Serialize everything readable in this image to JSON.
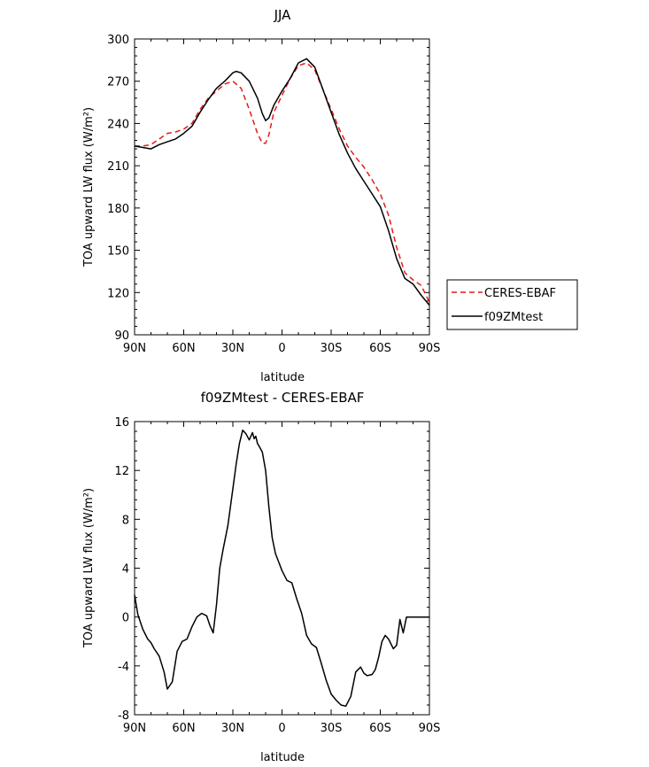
{
  "chart_data": [
    {
      "type": "line",
      "title": "JJA",
      "xlabel": "latitude",
      "ylabel": "TOA upward LW flux (W/m²)",
      "xlim": [
        90,
        -90
      ],
      "ylim": [
        90,
        300
      ],
      "xticks": [
        "90N",
        "60N",
        "30N",
        "0",
        "30S",
        "60S",
        "90S"
      ],
      "yticks": [
        "90",
        "120",
        "150",
        "180",
        "210",
        "240",
        "270",
        "300"
      ],
      "legend": "right",
      "series": [
        {
          "name": "CERES-EBAF",
          "color": "#e41a1c",
          "dash": "dashed",
          "x": [
            90,
            85,
            80,
            75,
            70,
            65,
            60,
            55,
            50,
            45,
            40,
            35,
            30,
            25,
            20,
            15,
            12,
            10,
            8,
            5,
            0,
            -5,
            -10,
            -15,
            -20,
            -25,
            -30,
            -35,
            -40,
            -45,
            -50,
            -55,
            -60,
            -65,
            -70,
            -75,
            -80,
            -85,
            -90
          ],
          "y": [
            224,
            224,
            225,
            229,
            233,
            234,
            236,
            240,
            250,
            258,
            263,
            268,
            270,
            265,
            250,
            233,
            226,
            226,
            232,
            248,
            260,
            272,
            281,
            283,
            278,
            264,
            250,
            236,
            224,
            216,
            209,
            200,
            190,
            175,
            152,
            134,
            129,
            125,
            113
          ]
        },
        {
          "name": "f09ZMtest",
          "color": "#000000",
          "dash": "solid",
          "x": [
            90,
            85,
            80,
            75,
            70,
            65,
            60,
            55,
            50,
            45,
            40,
            35,
            30,
            28,
            25,
            20,
            15,
            12,
            10,
            8,
            5,
            0,
            -5,
            -10,
            -15,
            -20,
            -25,
            -30,
            -35,
            -40,
            -45,
            -50,
            -55,
            -60,
            -65,
            -70,
            -75,
            -80,
            -85,
            -90
          ],
          "y": [
            224,
            223,
            222,
            225,
            227,
            229,
            233,
            238,
            248,
            257,
            265,
            270,
            276,
            277,
            276,
            270,
            258,
            247,
            242,
            244,
            253,
            263,
            272,
            283,
            286,
            280,
            264,
            248,
            232,
            219,
            208,
            199,
            190,
            181,
            164,
            144,
            130,
            126,
            118,
            111
          ]
        }
      ]
    },
    {
      "type": "line",
      "title": "f09ZMtest - CERES-EBAF",
      "xlabel": "latitude",
      "ylabel": "TOA upward LW flux (W/m²)",
      "xlim": [
        90,
        -90
      ],
      "ylim": [
        -8,
        16
      ],
      "xticks": [
        "90N",
        "60N",
        "30N",
        "0",
        "30S",
        "60S",
        "90S"
      ],
      "yticks": [
        "-8",
        "-4",
        "0",
        "4",
        "8",
        "12",
        "16"
      ],
      "series": [
        {
          "color": "#000000",
          "x": [
            90,
            88,
            85,
            82,
            80,
            78,
            75,
            72,
            70,
            67,
            64,
            61,
            58,
            55,
            52,
            49,
            46,
            44,
            42,
            40,
            38,
            36,
            35,
            33,
            30,
            28,
            26,
            24,
            22,
            20,
            18,
            17,
            16,
            15,
            14,
            12,
            10,
            8,
            6,
            4,
            2,
            0,
            -3,
            -6,
            -9,
            -12,
            -15,
            -18,
            -21,
            -24,
            -27,
            -30,
            -33,
            -36,
            -39,
            -42,
            -45,
            -48,
            -50,
            -52,
            -55,
            -57,
            -59,
            -61,
            -63,
            -65,
            -68,
            -70,
            -72,
            -74,
            -76,
            -78,
            -80,
            -82,
            -84,
            -86,
            -88,
            -89,
            -90
          ],
          "y": [
            1.8,
            0.2,
            -1.0,
            -1.8,
            -2.1,
            -2.6,
            -3.2,
            -4.5,
            -5.9,
            -5.3,
            -2.8,
            -2.0,
            -1.8,
            -0.8,
            0.0,
            0.3,
            0.1,
            -0.7,
            -1.3,
            1.0,
            4.0,
            5.5,
            6.2,
            7.5,
            10.5,
            12.5,
            14.2,
            15.3,
            15.0,
            14.5,
            15.1,
            14.6,
            14.8,
            14.2,
            14.0,
            13.5,
            12.0,
            9.0,
            6.5,
            5.2,
            4.5,
            3.8,
            3.0,
            2.8,
            1.5,
            0.3,
            -1.5,
            -2.2,
            -2.5,
            -3.8,
            -5.2,
            -6.3,
            -6.8,
            -7.2,
            -7.3,
            -6.5,
            -4.5,
            -4.1,
            -4.6,
            -4.8,
            -4.7,
            -4.3,
            -3.3,
            -2.0,
            -1.5,
            -1.8,
            -2.6,
            -2.3,
            -0.2,
            -1.3,
            0.0,
            0.0,
            0.0,
            0.0,
            0.0,
            0.0,
            0.0,
            0.0,
            0.0
          ]
        }
      ]
    }
  ]
}
